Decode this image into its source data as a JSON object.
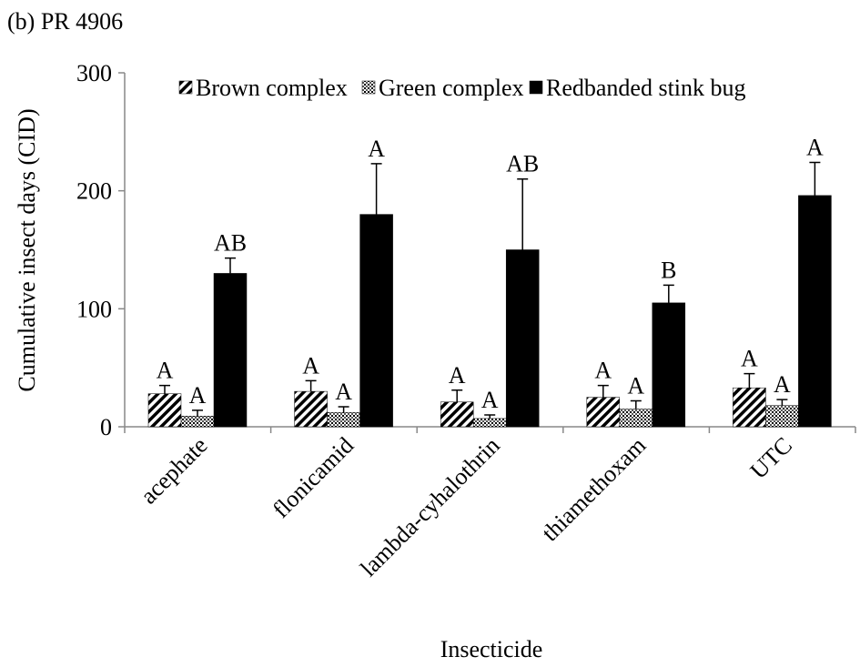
{
  "chart_data": {
    "type": "bar",
    "panel_label": "(b) PR 4906",
    "ylabel": "Cumulative insect days (CID)",
    "xlabel": "Insecticide",
    "categories": [
      "acephate",
      "flonicamid",
      "lambda-cyhalothrin",
      "thiamethoxam",
      "UTC"
    ],
    "series": [
      {
        "name": "Brown complex",
        "color": "#000000",
        "pattern": "hatch",
        "values": [
          28,
          30,
          21,
          25,
          33
        ],
        "errors": [
          7,
          9,
          10,
          10,
          12
        ],
        "labels": [
          "A",
          "A",
          "A",
          "A",
          "A"
        ]
      },
      {
        "name": "Green complex",
        "color": "#000000",
        "pattern": "dots",
        "values": [
          9,
          12,
          7,
          15,
          18
        ],
        "errors": [
          5,
          5,
          3,
          7,
          5
        ],
        "labels": [
          "A",
          "A",
          "A",
          "A",
          "A"
        ]
      },
      {
        "name": "Redbanded stink bug",
        "color": "#000000",
        "pattern": "solid",
        "values": [
          130,
          180,
          150,
          105,
          196
        ],
        "errors": [
          13,
          43,
          60,
          15,
          28
        ],
        "labels": [
          "AB",
          "A",
          "AB",
          "B",
          "A"
        ]
      }
    ],
    "ylim": [
      0,
      300
    ],
    "yticks": [
      0,
      100,
      200,
      300
    ],
    "legend": "top",
    "grid": false
  }
}
